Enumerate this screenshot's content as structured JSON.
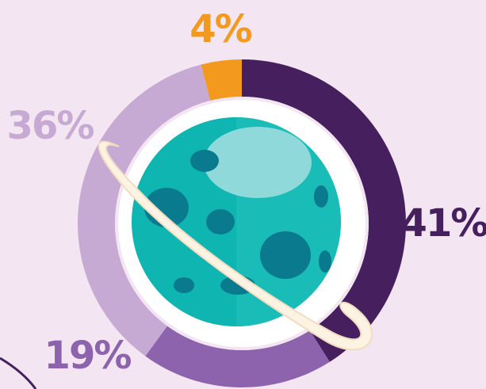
{
  "chart_data": {
    "type": "donut",
    "categories": [
      null,
      null,
      null,
      null
    ],
    "values": [
      41,
      19,
      36,
      4
    ],
    "value_labels": [
      "41%",
      "19%",
      "36%",
      "4%"
    ],
    "colors": [
      "#451f5e",
      "#8c63ac",
      "#c7aad4",
      "#f39a1e"
    ]
  }
}
